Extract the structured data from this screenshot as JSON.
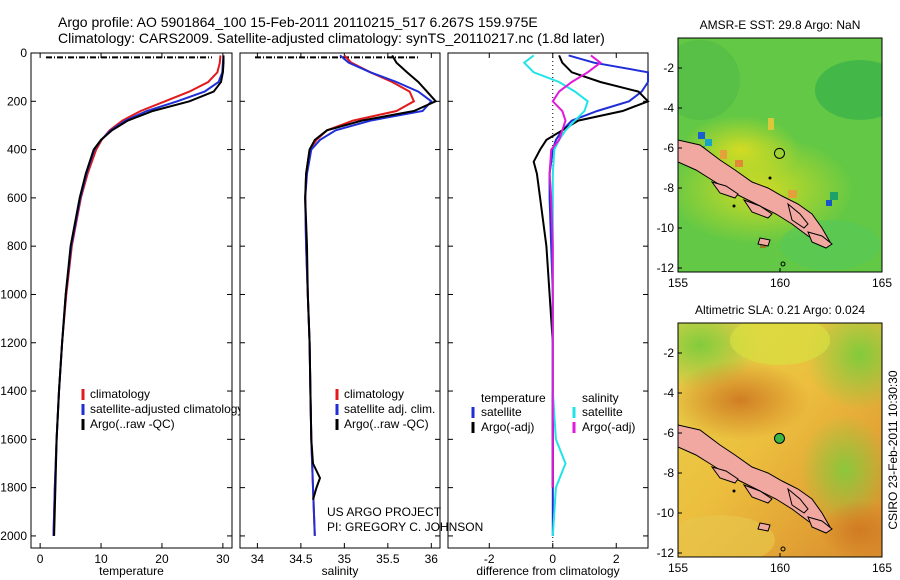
{
  "header": {
    "title_line1": "Argo profile: AO 5901864_100 15-Feb-2011 20110215_517 6.267S 159.975E",
    "title_line2": "Climatology: CARS2009. Satellite-adjusted climatology: synTS_20110217.nc (1.8d later)"
  },
  "credits": {
    "project": "US ARGO PROJECT",
    "pi": "PI: GREGORY C. JOHNSON",
    "stamp": "CSIRO 23-Feb-2011 10:30:30"
  },
  "colors": {
    "climatology": "#e31a1c",
    "satellite": "#1f2ed6",
    "argo": "#000000",
    "sal_satellite": "#22e3e8",
    "sal_argo": "#e01ad8"
  },
  "chart_data": [
    {
      "id": "temperature",
      "type": "line",
      "xlabel": "temperature",
      "ylabel": "",
      "xlim": [
        -1.5,
        31.5
      ],
      "ylim": [
        0,
        2050
      ],
      "xticks": [
        0,
        10,
        20,
        30
      ],
      "yticks": [
        0,
        200,
        400,
        600,
        800,
        1000,
        1200,
        1400,
        1600,
        1800,
        2000
      ],
      "legend": [
        "climatology",
        "satellite-adjusted climatology",
        "Argo(..raw -QC)"
      ],
      "series": [
        {
          "name": "climatology",
          "color_key": "climatology",
          "y": [
            10,
            40,
            80,
            120,
            160,
            200,
            240,
            280,
            320,
            360,
            400,
            500,
            600,
            800,
            1000,
            1200,
            1400,
            1600,
            1800,
            2000
          ],
          "x": [
            29.6,
            29.5,
            29.1,
            27.6,
            24.5,
            20.5,
            16.5,
            13.5,
            11.4,
            10.1,
            9.2,
            7.8,
            6.7,
            5.2,
            4.3,
            3.6,
            3.1,
            2.7,
            2.4,
            2.2
          ]
        },
        {
          "name": "satellite",
          "color_key": "satellite",
          "y": [
            10,
            40,
            80,
            120,
            160,
            200,
            240,
            280,
            320,
            360,
            400,
            500,
            600,
            800,
            1000,
            1200,
            1400,
            1600,
            1800,
            2000
          ],
          "x": [
            30.1,
            30.0,
            29.9,
            29.3,
            27.0,
            22.5,
            17.5,
            14.0,
            11.6,
            10.0,
            8.9,
            7.6,
            6.6,
            5.1,
            4.2,
            3.6,
            3.1,
            2.7,
            2.4,
            2.2
          ]
        },
        {
          "name": "argo",
          "color_key": "argo",
          "y": [
            10,
            40,
            80,
            120,
            160,
            200,
            240,
            280,
            320,
            360,
            400,
            500,
            600,
            800,
            1000,
            1200,
            1400,
            1600,
            1800,
            2000
          ],
          "x": [
            30.1,
            30.1,
            30.0,
            29.7,
            28.5,
            24.5,
            18.5,
            14.4,
            11.8,
            10.0,
            8.8,
            7.5,
            6.5,
            5.0,
            4.2,
            3.6,
            3.1,
            2.7,
            2.5,
            2.3
          ]
        }
      ]
    },
    {
      "id": "salinity",
      "type": "line",
      "xlabel": "salinity",
      "ylabel": "",
      "xlim": [
        33.8,
        36.1
      ],
      "ylim": [
        0,
        2050
      ],
      "xticks": [
        34,
        34.5,
        35,
        35.5,
        36
      ],
      "legend": [
        "climatology",
        "satellite adj. clim.",
        "Argo(..raw -QC)"
      ],
      "series": [
        {
          "name": "climatology",
          "color_key": "climatology",
          "y": [
            10,
            40,
            80,
            120,
            160,
            200,
            240,
            280,
            320,
            360,
            400,
            500,
            600,
            800,
            1000,
            1200,
            1400,
            1600,
            1800,
            2000
          ],
          "x": [
            35.0,
            35.08,
            35.3,
            35.55,
            35.75,
            35.8,
            35.6,
            35.1,
            34.8,
            34.68,
            34.6,
            34.56,
            34.55,
            34.56,
            34.58,
            34.6,
            34.61,
            34.62,
            34.64,
            34.66
          ]
        },
        {
          "name": "satellite",
          "color_key": "satellite",
          "y": [
            10,
            40,
            80,
            120,
            160,
            200,
            240,
            280,
            320,
            360,
            400,
            500,
            600,
            800,
            1000,
            1200,
            1400,
            1600,
            1800,
            2000
          ],
          "x": [
            34.95,
            35.05,
            35.3,
            35.6,
            35.85,
            36.0,
            35.9,
            35.3,
            34.9,
            34.72,
            34.62,
            34.57,
            34.55,
            34.56,
            34.58,
            34.6,
            34.61,
            34.62,
            34.64,
            34.66
          ]
        },
        {
          "name": "argo",
          "color_key": "argo",
          "y": [
            10,
            40,
            80,
            120,
            160,
            200,
            240,
            280,
            320,
            360,
            400,
            500,
            600,
            800,
            1000,
            1200,
            1400,
            1600,
            1700,
            1760,
            1800,
            1850
          ],
          "x": [
            35.55,
            35.6,
            35.72,
            35.85,
            35.95,
            36.05,
            35.8,
            35.2,
            34.8,
            34.66,
            34.6,
            34.56,
            34.55,
            34.57,
            34.58,
            34.6,
            34.61,
            34.62,
            34.64,
            34.72,
            34.68,
            34.64
          ]
        }
      ]
    },
    {
      "id": "difference",
      "type": "line",
      "xlabel": "difference from climatology",
      "ylabel": "",
      "xlim": [
        -3.3,
        3.0
      ],
      "ylim": [
        0,
        2050
      ],
      "xticks": [
        -2,
        0,
        2
      ],
      "legend_temperature_title": "temperature",
      "legend_salinity_title": "salinity",
      "legend": [
        "satellite",
        "Argo(-adj)",
        "satellite",
        "Argo(-adj)"
      ],
      "series": [
        {
          "name": "temperature satellite",
          "color_key": "satellite",
          "y": [
            10,
            40,
            80,
            120,
            160,
            200,
            240,
            280,
            320,
            360,
            400,
            500,
            600,
            800,
            1000,
            1200,
            1400,
            1600,
            1800,
            2000
          ],
          "x": [
            0.5,
            1.3,
            3.0,
            3.0,
            2.8,
            2.4,
            1.4,
            0.6,
            0.3,
            0.1,
            0,
            -0.1,
            -0.1,
            -0.05,
            0,
            0,
            0,
            0,
            0,
            0
          ]
        },
        {
          "name": "temperature argo",
          "color_key": "argo",
          "y": [
            10,
            40,
            80,
            120,
            160,
            200,
            240,
            280,
            320,
            360,
            400,
            450,
            500,
            600,
            800,
            1000,
            1200,
            1400,
            1600,
            1800
          ],
          "x": [
            0.2,
            0.3,
            0.6,
            1.5,
            2.7,
            3.0,
            2.2,
            0.8,
            0.3,
            -0.2,
            -0.4,
            -0.6,
            -0.5,
            -0.4,
            -0.2,
            -0.1,
            0,
            0,
            0,
            0
          ]
        },
        {
          "name": "salinity satellite",
          "color_key": "sal_satellite",
          "y": [
            10,
            40,
            80,
            120,
            160,
            200,
            240,
            280,
            320,
            360,
            400,
            500,
            600,
            800,
            1000,
            1200,
            1400,
            1600,
            1700,
            1800,
            2000
          ],
          "x": [
            -0.6,
            -0.9,
            -0.6,
            0.2,
            0.7,
            1.1,
            1.0,
            0.7,
            0.4,
            0.2,
            0.05,
            0,
            0,
            0,
            0,
            0,
            0,
            0.1,
            0.4,
            0.1,
            0
          ]
        },
        {
          "name": "salinity argo",
          "color_key": "sal_argo",
          "y": [
            10,
            40,
            80,
            120,
            160,
            200,
            240,
            280,
            320,
            360,
            400,
            500,
            600,
            800,
            1000,
            1200,
            1400,
            1600,
            1800
          ],
          "x": [
            1.2,
            1.5,
            1.1,
            0.6,
            0.2,
            0,
            0.3,
            0.4,
            0.3,
            0.2,
            -0.05,
            -0.1,
            -0.05,
            0,
            0,
            0,
            0,
            0,
            0
          ]
        }
      ]
    },
    {
      "id": "sst-map",
      "type": "heatmap",
      "title": "AMSR-E SST: 29.8 Argo: NaN",
      "xlim": [
        155,
        165
      ],
      "ylim": [
        -12.2,
        -0.5
      ],
      "xticks": [
        155,
        160,
        165
      ],
      "yticks": [
        -2,
        -4,
        -6,
        -8,
        -10,
        -12
      ],
      "marker": {
        "lon": 159.975,
        "lat": -6.267,
        "filled": false
      }
    },
    {
      "id": "sla-map",
      "type": "heatmap",
      "title": "Altimetric SLA: 0.21 Argo: 0.024",
      "xlim": [
        155,
        165
      ],
      "ylim": [
        -12.2,
        -0.5
      ],
      "xticks": [
        155,
        160,
        165
      ],
      "yticks": [
        -2,
        -4,
        -6,
        -8,
        -10,
        -12
      ],
      "marker": {
        "lon": 159.975,
        "lat": -6.267,
        "filled": true
      }
    }
  ]
}
